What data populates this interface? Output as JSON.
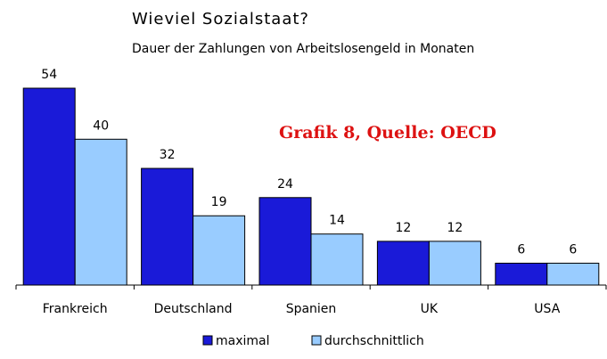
{
  "chart_data": {
    "type": "bar",
    "title": "Wieviel Sozialstaat?",
    "subtitle": "Dauer der Zahlungen von Arbeitslosengeld in Monaten",
    "annotation": "Grafik 8, Quelle: OECD",
    "categories": [
      "Frankreich",
      "Deutschland",
      "Spanien",
      "UK",
      "USA"
    ],
    "series": [
      {
        "name": "maximal",
        "color": "#1a1ad8",
        "values": [
          54,
          32,
          24,
          12,
          6
        ]
      },
      {
        "name": "durchschnittlich",
        "color": "#99ccff",
        "values": [
          40,
          19,
          14,
          12,
          6
        ]
      }
    ]
  }
}
